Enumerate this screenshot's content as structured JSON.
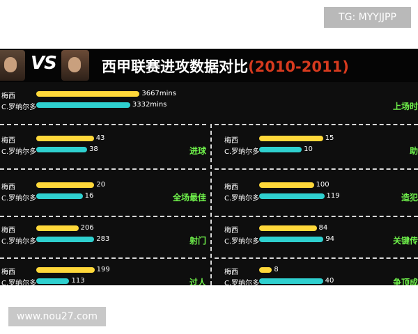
{
  "watermarks": {
    "top": "TG: MYYJJPP",
    "bottom": "www.nou27.com"
  },
  "header": {
    "vs": "VS",
    "title": "西甲联赛进攻数据对比",
    "years": "(2010-2011)"
  },
  "players": {
    "a": "梅西",
    "b": "C.罗纳尔多"
  },
  "colors": {
    "a": "#ffd83a",
    "b": "#2fd0cf",
    "category": "#6ef04a",
    "year": "#d63a1e"
  },
  "chart_data": {
    "type": "bar",
    "title": "西甲联赛进攻数据对比 (2010-2011)",
    "series": [
      {
        "name": "梅西",
        "color": "#ffd83a"
      },
      {
        "name": "C.罗纳尔多",
        "color": "#2fd0cf"
      }
    ],
    "panels": [
      {
        "category": "上场时",
        "values": [
          3667,
          3332
        ],
        "labels": [
          "3667mins",
          "3332mins"
        ],
        "max": 4200
      },
      {
        "category": "进球",
        "values": [
          43,
          38
        ],
        "labels": [
          "43",
          "38"
        ],
        "max": 52
      },
      {
        "category": "助",
        "values": [
          15,
          10
        ],
        "labels": [
          "15",
          "10"
        ],
        "max": 18
      },
      {
        "category": "全场最佳",
        "values": [
          20,
          16
        ],
        "labels": [
          "20",
          "16"
        ],
        "max": 24
      },
      {
        "category": "造犯",
        "values": [
          100,
          119
        ],
        "labels": [
          "100",
          "119"
        ],
        "max": 140
      },
      {
        "category": "射门",
        "values": [
          206,
          283
        ],
        "labels": [
          "206",
          "283"
        ],
        "max": 340
      },
      {
        "category": "关键传",
        "values": [
          84,
          94
        ],
        "labels": [
          "84",
          "94"
        ],
        "max": 112
      },
      {
        "category": "过人",
        "values": [
          199,
          113
        ],
        "labels": [
          "199",
          "113"
        ],
        "max": 238
      },
      {
        "category": "争顶成",
        "values": [
          8,
          40
        ],
        "labels": [
          "8",
          "40"
        ],
        "max": 48
      }
    ]
  }
}
